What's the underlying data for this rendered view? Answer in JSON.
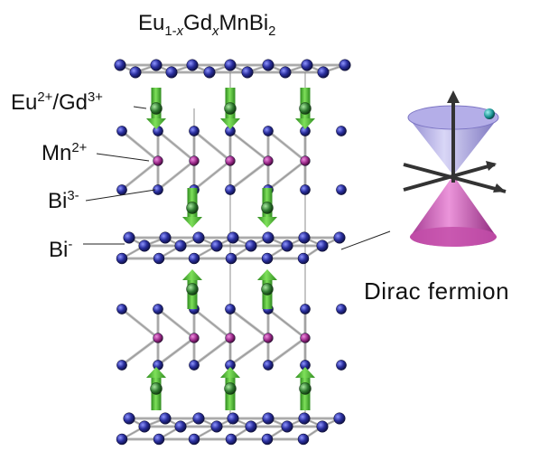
{
  "title": {
    "main": "Eu",
    "sub1": "1-",
    "subx": "x",
    "gd": "Gd",
    "subx2": "x",
    "rest": "MnBi",
    "sub2": "2"
  },
  "labels": {
    "eu_gd": {
      "a": "Eu",
      "a_sup": "2+",
      "sep": "/Gd",
      "b_sup": "3+"
    },
    "mn": {
      "a": "Mn",
      "a_sup": "2+"
    },
    "bi3": {
      "a": "Bi",
      "a_sup": "3-"
    },
    "bi1": {
      "a": "Bi",
      "a_sup": "-"
    },
    "dirac": "Dirac fermion"
  },
  "colors": {
    "bi_atom": "#2a2f9e",
    "mn_atom": "#9b2a8a",
    "eu_atom": "#2f7a2f",
    "spin_arrow": "#55cc33",
    "bond": "#9a9a9a",
    "cone_upper": "#a9a4e0",
    "cone_lower": "#cc4fb4",
    "electron": "#1a9c9c"
  },
  "icons": [
    "spin-up-arrow-icon",
    "spin-down-arrow-icon",
    "dirac-cone-icon",
    "electron-icon"
  ]
}
